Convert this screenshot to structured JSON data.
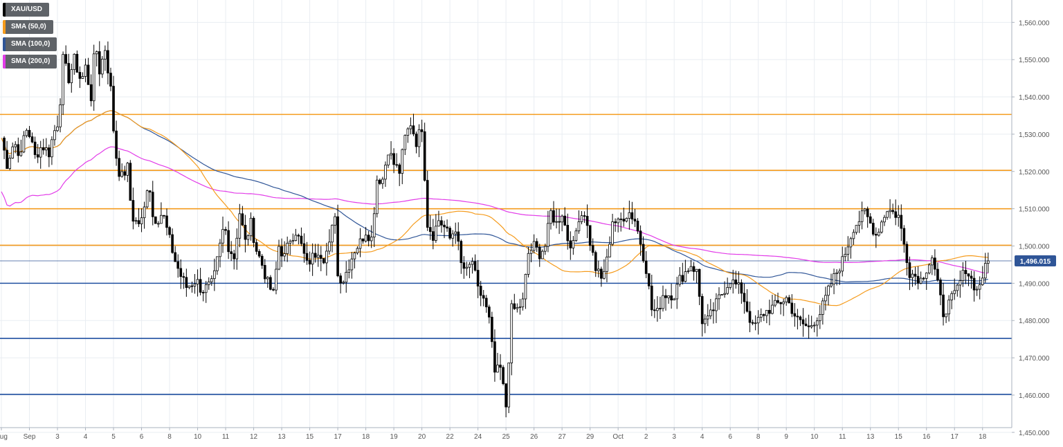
{
  "chart_data": {
    "type": "candlestick",
    "symbol": "XAU/USD",
    "legend": [
      {
        "label": "XAU/USD",
        "color": "#000000"
      },
      {
        "label": "SMA (50,0)",
        "color": "#f59b1c"
      },
      {
        "label": "SMA (100,0)",
        "color": "#2f5597"
      },
      {
        "label": "SMA (200,0)",
        "color": "#e23be8"
      }
    ],
    "y_axis": {
      "range": [
        1447,
        1566
      ],
      "ticks": [
        {
          "value": 1450,
          "label": "1,450.000"
        },
        {
          "value": 1460,
          "label": "1,460.000"
        },
        {
          "value": 1470,
          "label": "1,470.000"
        },
        {
          "value": 1480,
          "label": "1,480.000"
        },
        {
          "value": 1490,
          "label": "1,490.000"
        },
        {
          "value": 1500,
          "label": "1,500.000"
        },
        {
          "value": 1510,
          "label": "1,510.000"
        },
        {
          "value": 1520,
          "label": "1,520.000"
        },
        {
          "value": 1530,
          "label": "1,530.000"
        },
        {
          "value": 1540,
          "label": "1,540.000"
        },
        {
          "value": 1550,
          "label": "1,550.000"
        },
        {
          "value": 1560,
          "label": "1,560.000"
        }
      ]
    },
    "x_axis": {
      "range": [
        0,
        35.5
      ],
      "ticks": [
        {
          "x": 0.0,
          "label": "Aug"
        },
        {
          "x": 1.0,
          "label": "Sep"
        },
        {
          "x": 2.0,
          "label": "3"
        },
        {
          "x": 3.0,
          "label": "4"
        },
        {
          "x": 4.0,
          "label": "5"
        },
        {
          "x": 5.0,
          "label": "6"
        },
        {
          "x": 6.0,
          "label": "8"
        },
        {
          "x": 7.0,
          "label": "10"
        },
        {
          "x": 8.0,
          "label": "11"
        },
        {
          "x": 9.0,
          "label": "12"
        },
        {
          "x": 10.0,
          "label": "13"
        },
        {
          "x": 11.0,
          "label": "15"
        },
        {
          "x": 12.0,
          "label": "17"
        },
        {
          "x": 13.0,
          "label": "18"
        },
        {
          "x": 14.0,
          "label": "19"
        },
        {
          "x": 15.0,
          "label": "20"
        },
        {
          "x": 16.0,
          "label": "22"
        },
        {
          "x": 17.0,
          "label": "24"
        },
        {
          "x": 18.0,
          "label": "25"
        },
        {
          "x": 19.0,
          "label": "26"
        },
        {
          "x": 20.0,
          "label": "27"
        },
        {
          "x": 21.0,
          "label": "29"
        },
        {
          "x": 22.0,
          "label": "Oct"
        },
        {
          "x": 23.0,
          "label": "2"
        },
        {
          "x": 24.0,
          "label": "3"
        },
        {
          "x": 25.0,
          "label": "4"
        },
        {
          "x": 26.0,
          "label": "6"
        },
        {
          "x": 27.0,
          "label": "8"
        },
        {
          "x": 28.0,
          "label": "9"
        },
        {
          "x": 29.0,
          "label": "10"
        },
        {
          "x": 30.0,
          "label": "11"
        },
        {
          "x": 31.0,
          "label": "13"
        },
        {
          "x": 32.0,
          "label": "15"
        },
        {
          "x": 33.0,
          "label": "16"
        },
        {
          "x": 34.0,
          "label": "17"
        },
        {
          "x": 35.0,
          "label": "18"
        }
      ]
    },
    "grid": true,
    "current_price": {
      "value": 1496.015,
      "label": "1,496.015"
    },
    "horizontal_levels": [
      {
        "value": 1535.3,
        "color": "#f59b1c"
      },
      {
        "value": 1520.3,
        "color": "#f59b1c"
      },
      {
        "value": 1510.0,
        "color": "#f59b1c"
      },
      {
        "value": 1500.2,
        "color": "#f59b1c"
      },
      {
        "value": 1490.0,
        "color": "#1f4fa0"
      },
      {
        "value": 1475.2,
        "color": "#1f4fa0"
      },
      {
        "value": 1460.2,
        "color": "#1f4fa0"
      }
    ],
    "candle_anchors": [
      [
        0.0,
        1529
      ],
      [
        0.2,
        1522
      ],
      [
        0.45,
        1528
      ],
      [
        0.7,
        1524
      ],
      [
        0.85,
        1532
      ],
      [
        1.0,
        1530
      ],
      [
        1.2,
        1524
      ],
      [
        1.45,
        1527
      ],
      [
        1.7,
        1525
      ],
      [
        1.85,
        1530
      ],
      [
        2.05,
        1534
      ],
      [
        2.2,
        1550
      ],
      [
        2.4,
        1545
      ],
      [
        2.6,
        1550
      ],
      [
        2.85,
        1544
      ],
      [
        3.0,
        1548
      ],
      [
        3.2,
        1540
      ],
      [
        3.35,
        1555
      ],
      [
        3.5,
        1547
      ],
      [
        3.7,
        1553
      ],
      [
        3.9,
        1542
      ],
      [
        4.05,
        1526
      ],
      [
        4.25,
        1518
      ],
      [
        4.5,
        1521
      ],
      [
        4.65,
        1508
      ],
      [
        4.85,
        1506
      ],
      [
        5.05,
        1507
      ],
      [
        5.25,
        1519
      ],
      [
        5.4,
        1508
      ],
      [
        5.55,
        1507
      ],
      [
        5.75,
        1509
      ],
      [
        5.95,
        1503
      ],
      [
        6.2,
        1496
      ],
      [
        6.4,
        1492
      ],
      [
        6.6,
        1489
      ],
      [
        6.8,
        1490
      ],
      [
        6.95,
        1491
      ],
      [
        7.15,
        1488
      ],
      [
        7.35,
        1489
      ],
      [
        7.55,
        1490
      ],
      [
        7.75,
        1498
      ],
      [
        7.95,
        1506
      ],
      [
        8.1,
        1500
      ],
      [
        8.3,
        1497
      ],
      [
        8.5,
        1509
      ],
      [
        8.7,
        1501
      ],
      [
        8.9,
        1506
      ],
      [
        9.1,
        1499
      ],
      [
        9.3,
        1495
      ],
      [
        9.5,
        1490
      ],
      [
        9.7,
        1487
      ],
      [
        9.9,
        1500
      ],
      [
        10.1,
        1497
      ],
      [
        10.3,
        1502
      ],
      [
        10.5,
        1504
      ],
      [
        10.7,
        1500
      ],
      [
        10.9,
        1495
      ],
      [
        11.1,
        1497
      ],
      [
        11.3,
        1499
      ],
      [
        11.5,
        1497
      ],
      [
        11.7,
        1500
      ],
      [
        11.9,
        1509
      ],
      [
        12.0,
        1492
      ],
      [
        12.2,
        1491
      ],
      [
        12.4,
        1495
      ],
      [
        12.6,
        1499
      ],
      [
        12.8,
        1501
      ],
      [
        13.0,
        1504
      ],
      [
        13.2,
        1502
      ],
      [
        13.4,
        1518
      ],
      [
        13.6,
        1518
      ],
      [
        13.8,
        1526
      ],
      [
        14.0,
        1522
      ],
      [
        14.2,
        1520
      ],
      [
        14.4,
        1529
      ],
      [
        14.6,
        1533
      ],
      [
        14.8,
        1528
      ],
      [
        15.0,
        1532
      ],
      [
        15.2,
        1506
      ],
      [
        15.4,
        1503
      ],
      [
        15.6,
        1507
      ],
      [
        15.8,
        1505
      ],
      [
        16.0,
        1502
      ],
      [
        16.2,
        1505
      ],
      [
        16.4,
        1495
      ],
      [
        16.6,
        1493
      ],
      [
        16.8,
        1496
      ],
      [
        17.0,
        1488
      ],
      [
        17.2,
        1486
      ],
      [
        17.4,
        1480
      ],
      [
        17.6,
        1466
      ],
      [
        17.8,
        1467
      ],
      [
        18.0,
        1457
      ],
      [
        18.2,
        1483
      ],
      [
        18.4,
        1483
      ],
      [
        18.6,
        1485
      ],
      [
        18.8,
        1498
      ],
      [
        19.0,
        1500
      ],
      [
        19.2,
        1498
      ],
      [
        19.4,
        1500
      ],
      [
        19.6,
        1509
      ],
      [
        19.8,
        1506
      ],
      [
        20.0,
        1509
      ],
      [
        20.2,
        1502
      ],
      [
        20.4,
        1500
      ],
      [
        20.6,
        1508
      ],
      [
        20.8,
        1509
      ],
      [
        21.0,
        1501
      ],
      [
        21.2,
        1494
      ],
      [
        21.4,
        1491
      ],
      [
        21.6,
        1496
      ],
      [
        21.8,
        1507
      ],
      [
        22.0,
        1506
      ],
      [
        22.2,
        1508
      ],
      [
        22.4,
        1509
      ],
      [
        22.6,
        1507
      ],
      [
        22.8,
        1501
      ],
      [
        23.0,
        1494
      ],
      [
        23.2,
        1483
      ],
      [
        23.4,
        1482
      ],
      [
        23.6,
        1487
      ],
      [
        23.8,
        1487
      ],
      [
        24.0,
        1487
      ],
      [
        24.2,
        1491
      ],
      [
        24.4,
        1493
      ],
      [
        24.6,
        1495
      ],
      [
        24.8,
        1493
      ],
      [
        25.0,
        1480
      ],
      [
        25.2,
        1480
      ]
    ]
  }
}
